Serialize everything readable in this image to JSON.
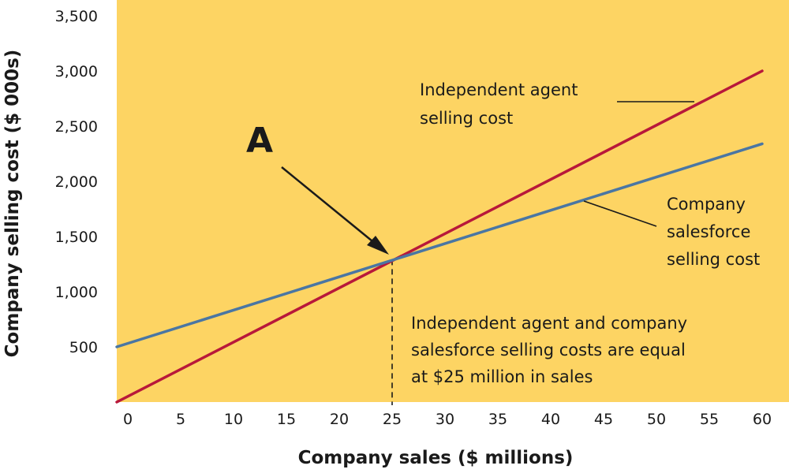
{
  "chart_data": {
    "type": "line",
    "title": "",
    "xlabel": "Company sales ($ millions)",
    "ylabel": "Company selling cost ($ 000s)",
    "xlim": [
      0,
      60
    ],
    "ylim": [
      0,
      3500
    ],
    "x_ticks": [
      "0",
      "5",
      "10",
      "15",
      "20",
      "25",
      "30",
      "35",
      "40",
      "45",
      "50",
      "55",
      "60"
    ],
    "y_ticks": [
      "500",
      "1,000",
      "1,500",
      "2,000",
      "2,500",
      "3,000",
      "3,500"
    ],
    "grid": false,
    "background_color": "#fdd463",
    "series": [
      {
        "name": "Independent agent selling cost",
        "color": "#b8183a",
        "x": [
          0,
          60
        ],
        "y": [
          0,
          3000
        ]
      },
      {
        "name": "Company salesforce selling cost",
        "color": "#4a76a3",
        "x": [
          0,
          60
        ],
        "y": [
          500,
          2340
        ]
      }
    ],
    "annotations": {
      "point_label": "A",
      "intersection": {
        "x": 25,
        "y": 1290
      },
      "agent_label_lines": [
        "Independent agent",
        "selling cost"
      ],
      "salesforce_label_lines": [
        "Company",
        "salesforce",
        "selling cost"
      ],
      "note_lines": [
        "Independent agent and company",
        "salesforce selling costs are equal",
        "at $25 million in sales"
      ]
    }
  }
}
